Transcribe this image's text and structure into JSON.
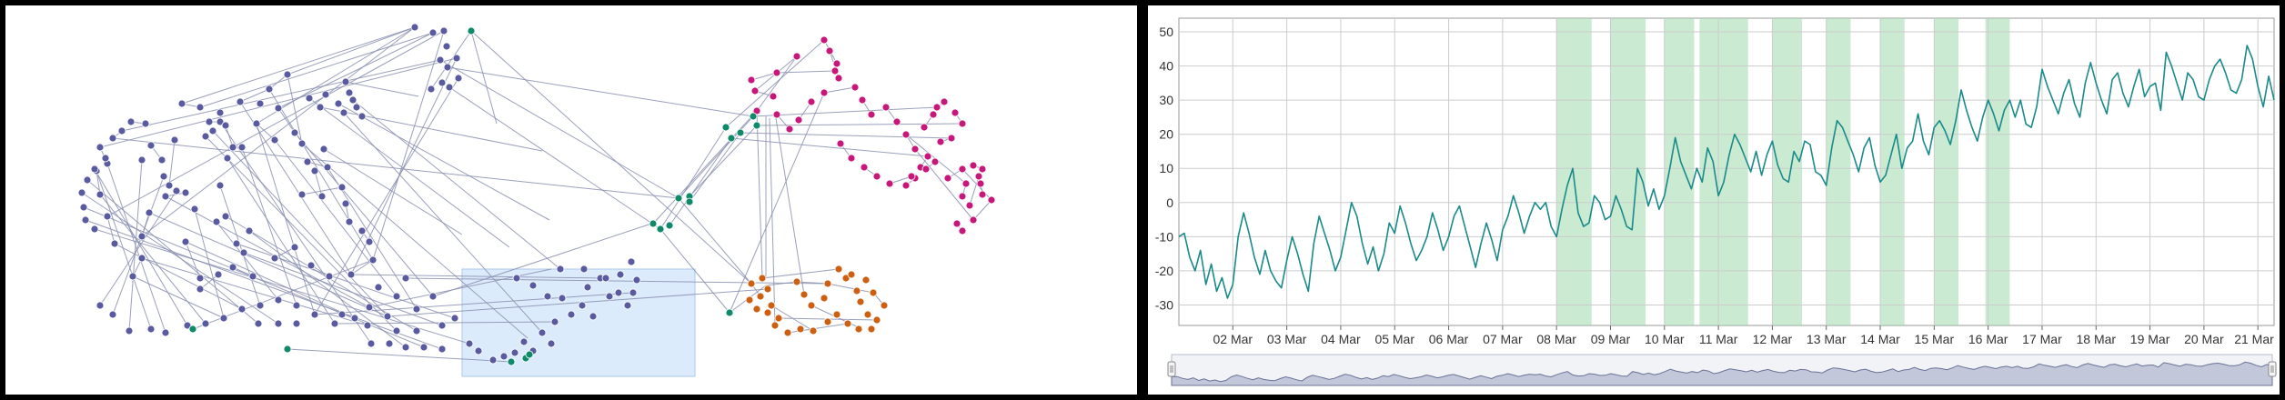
{
  "graph": {
    "node_colors": {
      "purple": "#5a5aa0",
      "green": "#0e8a6a",
      "magenta": "#c8177a",
      "orange": "#cc5f10"
    },
    "edge_color": "#8a8fb0",
    "selection_fill": "#dcebfb"
  },
  "chart": {
    "band_color": "#9fd8ad",
    "line_color": "#1a8a8a",
    "navigator_fill": "#c2c8da",
    "navigator_line": "#6a7296"
  },
  "chart_data": {
    "type": "line",
    "title": "",
    "xlabel": "",
    "ylabel": "",
    "x_ticks": [
      "02 Mar",
      "03 Mar",
      "04 Mar",
      "05 Mar",
      "06 Mar",
      "07 Mar",
      "08 Mar",
      "09 Mar",
      "10 Mar",
      "11 Mar",
      "12 Mar",
      "13 Mar",
      "14 Mar",
      "15 Mar",
      "16 Mar",
      "17 Mar",
      "18 Mar",
      "19 Mar",
      "20 Mar",
      "21 Mar"
    ],
    "y_ticks": [
      50,
      40,
      30,
      20,
      10,
      0,
      -10,
      -20,
      -30
    ],
    "ylim": [
      -36,
      54
    ],
    "x_day_range": [
      1.0,
      21.3
    ],
    "grid": true,
    "highlight_bands_days": [
      [
        8.0,
        8.65
      ],
      [
        9.0,
        9.65
      ],
      [
        10.0,
        10.55
      ],
      [
        10.65,
        11.55
      ],
      [
        12.0,
        12.55
      ],
      [
        13.0,
        13.45
      ],
      [
        14.0,
        14.45
      ],
      [
        15.0,
        15.45
      ],
      [
        15.95,
        16.4
      ]
    ],
    "series": [
      {
        "x_days": [
          1.0,
          1.1,
          1.2,
          1.3,
          1.4,
          1.5,
          1.6,
          1.7,
          1.8,
          1.9,
          2.0,
          2.1,
          2.2,
          2.3,
          2.4,
          2.5,
          2.6,
          2.7,
          2.8,
          2.9,
          3.0,
          3.1,
          3.2,
          3.3,
          3.4,
          3.5,
          3.6,
          3.7,
          3.8,
          3.9,
          4.0,
          4.1,
          4.2,
          4.3,
          4.4,
          4.5,
          4.6,
          4.7,
          4.8,
          4.9,
          5.0,
          5.1,
          5.2,
          5.3,
          5.4,
          5.5,
          5.6,
          5.7,
          5.8,
          5.9,
          6.0,
          6.1,
          6.2,
          6.3,
          6.4,
          6.5,
          6.6,
          6.7,
          6.8,
          6.9,
          7.0,
          7.1,
          7.2,
          7.3,
          7.4,
          7.5,
          7.6,
          7.7,
          7.8,
          7.9,
          8.0,
          8.1,
          8.2,
          8.3,
          8.4,
          8.5,
          8.6,
          8.7,
          8.8,
          8.9,
          9.0,
          9.1,
          9.2,
          9.3,
          9.4,
          9.5,
          9.6,
          9.7,
          9.8,
          9.9,
          10.0,
          10.1,
          10.2,
          10.3,
          10.4,
          10.5,
          10.6,
          10.7,
          10.8,
          10.9,
          11.0,
          11.1,
          11.2,
          11.3,
          11.4,
          11.5,
          11.6,
          11.7,
          11.8,
          11.9,
          12.0,
          12.1,
          12.2,
          12.3,
          12.4,
          12.5,
          12.6,
          12.7,
          12.8,
          12.9,
          13.0,
          13.1,
          13.2,
          13.3,
          13.4,
          13.5,
          13.6,
          13.7,
          13.8,
          13.9,
          14.0,
          14.1,
          14.2,
          14.3,
          14.4,
          14.5,
          14.6,
          14.7,
          14.8,
          14.9,
          15.0,
          15.1,
          15.2,
          15.3,
          15.4,
          15.5,
          15.6,
          15.7,
          15.8,
          15.9,
          16.0,
          16.1,
          16.2,
          16.3,
          16.4,
          16.5,
          16.6,
          16.7,
          16.8,
          16.9,
          17.0,
          17.1,
          17.2,
          17.3,
          17.4,
          17.5,
          17.6,
          17.7,
          17.8,
          17.9,
          18.0,
          18.1,
          18.2,
          18.3,
          18.4,
          18.5,
          18.6,
          18.7,
          18.8,
          18.9,
          19.0,
          19.1,
          19.2,
          19.3,
          19.4,
          19.5,
          19.6,
          19.7,
          19.8,
          19.9,
          20.0,
          20.1,
          20.2,
          20.3,
          20.4,
          20.5,
          20.6,
          20.7,
          20.8,
          20.9,
          21.0,
          21.1,
          21.2,
          21.3
        ],
        "values": [
          -10,
          -9,
          -16,
          -20,
          -14,
          -24,
          -18,
          -26,
          -22,
          -28,
          -24,
          -10,
          -3,
          -9,
          -16,
          -21,
          -14,
          -20,
          -23,
          -25,
          -17,
          -10,
          -15,
          -21,
          -26,
          -12,
          -4,
          -9,
          -14,
          -20,
          -16,
          -8,
          0,
          -4,
          -12,
          -18,
          -13,
          -20,
          -15,
          -6,
          -9,
          -1,
          -6,
          -12,
          -17,
          -14,
          -10,
          -3,
          -8,
          -14,
          -10,
          -4,
          -1,
          -7,
          -13,
          -19,
          -12,
          -6,
          -11,
          -17,
          -8,
          -4,
          2,
          -3,
          -9,
          -4,
          0,
          -2,
          0,
          -7,
          -10,
          -2,
          5,
          10,
          -3,
          -7,
          -6,
          2,
          0,
          -5,
          -4,
          2,
          -2,
          -7,
          -8,
          10,
          6,
          -1,
          4,
          -2,
          2,
          10,
          19,
          12,
          8,
          4,
          10,
          6,
          16,
          12,
          2,
          6,
          14,
          20,
          17,
          13,
          9,
          15,
          8,
          14,
          18,
          11,
          7,
          6,
          15,
          12,
          18,
          17,
          9,
          8,
          5,
          16,
          24,
          22,
          18,
          14,
          9,
          16,
          19,
          11,
          6,
          8,
          14,
          20,
          10,
          16,
          18,
          26,
          18,
          14,
          22,
          24,
          21,
          17,
          24,
          33,
          27,
          22,
          18,
          25,
          30,
          26,
          21,
          27,
          30,
          25,
          30,
          23,
          22,
          28,
          39,
          34,
          30,
          26,
          32,
          36,
          29,
          25,
          35,
          41,
          35,
          30,
          26,
          36,
          38,
          32,
          28,
          34,
          39,
          31,
          34,
          35,
          27,
          44,
          40,
          35,
          30,
          38,
          36,
          31,
          30,
          36,
          40,
          42,
          38,
          33,
          32,
          36,
          46,
          42,
          34,
          28,
          37,
          30
        ]
      }
    ]
  }
}
